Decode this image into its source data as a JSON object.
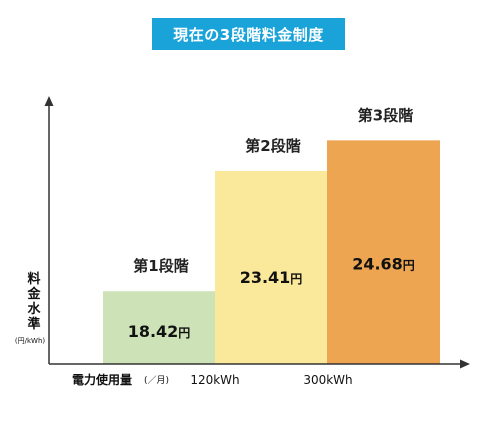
{
  "title": "現在の3段階料金制度",
  "chart_data": {
    "type": "bar",
    "title": "現在の3段階料金制度",
    "xlabel": "電力使用量",
    "xlabel_unit": "(／月)",
    "ylabel": "料金水準",
    "ylabel_chars": [
      "料",
      "金",
      "水",
      "準"
    ],
    "ylabel_unit": "(円/kWh)",
    "x_ticks": [
      "120kWh",
      "300kWh"
    ],
    "categories": [
      "第1段階",
      "第2段階",
      "第3段階"
    ],
    "values": [
      18.42,
      23.41,
      24.68
    ],
    "value_labels": [
      "18.42",
      "23.41",
      "24.68"
    ],
    "value_unit": "円",
    "colors": [
      "#cde3b7",
      "#fae99a",
      "#eda551"
    ]
  }
}
